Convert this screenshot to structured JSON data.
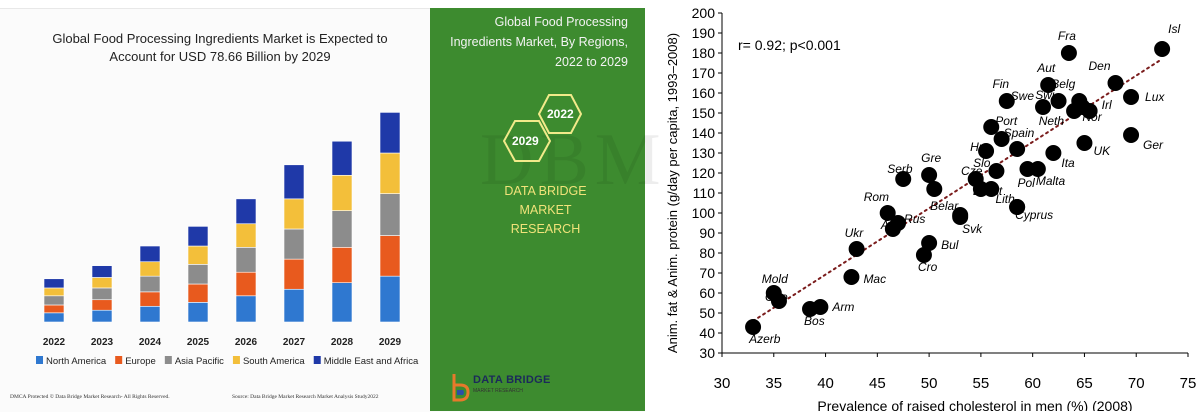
{
  "left": {
    "title_lines": [
      "Global Food Processing Ingredients Market is Expected to",
      "Account for USD 78.66 Billion by 2029"
    ],
    "side_title_lines": [
      "Global Food Processing",
      "Ingredients Market, By Regions,",
      "2022 to 2029"
    ],
    "hex_2022": "2022",
    "hex_2029": "2029",
    "brand_lines": [
      "DATA BRIDGE MARKET",
      "RESEARCH"
    ],
    "logo_text": "DATA BRIDGE",
    "footer_left": "DMCA Protected © Data Bridge Market Research- All Rights Reserved.",
    "footer_right": "Source: Data Bridge Market Research Market Analysis Study2022",
    "colors": {
      "green": "#3d8b2f",
      "brand_text": "#f1e37a"
    }
  },
  "right": {
    "annotation": "r= 0.92; p<0.001"
  },
  "chart_data": [
    {
      "type": "bar",
      "stacked": true,
      "title": "Global Food Processing Ingredients Market is Expected to Account for USD 78.66 Billion by 2029",
      "categories": [
        "2022",
        "2023",
        "2024",
        "2025",
        "2026",
        "2027",
        "2028",
        "2029"
      ],
      "legend_position": "bottom",
      "series": [
        {
          "name": "North America",
          "color": "#2f78d0",
          "values": [
            7,
            9,
            12,
            15,
            20,
            25,
            30,
            35
          ]
        },
        {
          "name": "Europe",
          "color": "#e85a1e",
          "values": [
            6,
            8,
            11,
            14,
            18,
            23,
            27,
            31
          ]
        },
        {
          "name": "Asia Pacific",
          "color": "#8c8c8c",
          "values": [
            7,
            9,
            12,
            15,
            19,
            23,
            28,
            32
          ]
        },
        {
          "name": "South America",
          "color": "#f3bf3a",
          "values": [
            6,
            8,
            11,
            14,
            18,
            23,
            27,
            31
          ]
        },
        {
          "name": "Middle East and Africa",
          "color": "#1f39a8",
          "values": [
            7,
            9,
            12,
            15,
            19,
            26,
            26,
            31
          ]
        }
      ]
    },
    {
      "type": "scatter",
      "xlabel": "Prevalence of raised cholesterol in men (%) (2008)",
      "ylabel": "Anim. fat & Anim. protein (g/day per capita, 1993–2008)",
      "xlim": [
        30,
        75
      ],
      "ylim": [
        30,
        200
      ],
      "xticks": [
        30,
        35,
        40,
        45,
        50,
        55,
        60,
        65,
        70,
        75
      ],
      "yticks": [
        30,
        40,
        50,
        60,
        70,
        80,
        90,
        100,
        110,
        120,
        130,
        140,
        150,
        160,
        170,
        180,
        190,
        200
      ],
      "trendline": {
        "style": "dotted",
        "color": "#7a1c1c",
        "from": [
          33,
          46
        ],
        "to": [
          72.5,
          177
        ]
      },
      "points": [
        {
          "label": "Isl",
          "x": 72.5,
          "y": 182
        },
        {
          "label": "Fra",
          "x": 63.5,
          "y": 180
        },
        {
          "label": "Den",
          "x": 68,
          "y": 165
        },
        {
          "label": "Aut",
          "x": 61.5,
          "y": 164
        },
        {
          "label": "Lux",
          "x": 69.5,
          "y": 158
        },
        {
          "label": "Fin",
          "x": 57.5,
          "y": 156
        },
        {
          "label": "Belg",
          "x": 64.5,
          "y": 156
        },
        {
          "label": "Swi",
          "x": 62.5,
          "y": 156
        },
        {
          "label": "Swe",
          "x": 61,
          "y": 153
        },
        {
          "label": "Irl",
          "x": 65.5,
          "y": 151
        },
        {
          "label": "Neth",
          "x": 64,
          "y": 151
        },
        {
          "label": "Nor",
          "x": 64.8,
          "y": 153
        },
        {
          "label": "Port",
          "x": 56,
          "y": 143
        },
        {
          "label": "Spain",
          "x": 57,
          "y": 137
        },
        {
          "label": "Ger",
          "x": 69.5,
          "y": 139
        },
        {
          "label": "UK",
          "x": 65,
          "y": 135
        },
        {
          "label": "Hun",
          "x": 55.5,
          "y": 131
        },
        {
          "label": "",
          "x": 58.5,
          "y": 132
        },
        {
          "label": "Ita",
          "x": 62,
          "y": 130
        },
        {
          "label": "Slo",
          "x": 56.5,
          "y": 121
        },
        {
          "label": "Malta",
          "x": 60.5,
          "y": 122
        },
        {
          "label": "Pol",
          "x": 59.5,
          "y": 122
        },
        {
          "label": "Gre",
          "x": 50,
          "y": 119
        },
        {
          "label": "Serb",
          "x": 47.5,
          "y": 117
        },
        {
          "label": "Cze",
          "x": 54.5,
          "y": 117
        },
        {
          "label": "Est",
          "x": 55,
          "y": 112
        },
        {
          "label": "",
          "x": 50.5,
          "y": 112
        },
        {
          "label": "Lat",
          "x": 56,
          "y": 112
        },
        {
          "label": "Lith",
          "x": 58.5,
          "y": 103
        },
        {
          "label": "Cyprus",
          "x": 58.5,
          "y": 103
        },
        {
          "label": "Belar",
          "x": 53,
          "y": 99
        },
        {
          "label": "Rom",
          "x": 46,
          "y": 100
        },
        {
          "label": "Svk",
          "x": 53,
          "y": 98
        },
        {
          "label": "Alb",
          "x": 46.5,
          "y": 92
        },
        {
          "label": "Rus",
          "x": 47,
          "y": 95
        },
        {
          "label": "Ukr",
          "x": 43,
          "y": 82
        },
        {
          "label": "Bul",
          "x": 50,
          "y": 85
        },
        {
          "label": "Cro",
          "x": 49.5,
          "y": 79
        },
        {
          "label": "Mac",
          "x": 42.5,
          "y": 68
        },
        {
          "label": "Mold",
          "x": 35,
          "y": 60
        },
        {
          "label": "Geo",
          "x": 35.5,
          "y": 56
        },
        {
          "label": "Arm",
          "x": 39.5,
          "y": 53
        },
        {
          "label": "Bos",
          "x": 38.5,
          "y": 52
        },
        {
          "label": "Azerb",
          "x": 33,
          "y": 43
        }
      ]
    }
  ]
}
